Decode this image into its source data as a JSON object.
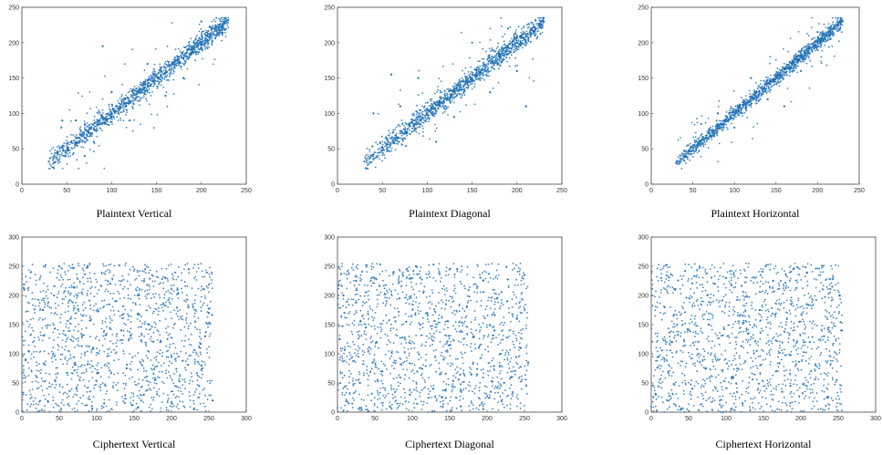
{
  "figure": {
    "colors": {
      "marker": "#1f6fb4",
      "axis": "#444444"
    }
  },
  "chart_data": [
    {
      "type": "scatter",
      "title": "Plaintext Vertical",
      "xlim": [
        0,
        250
      ],
      "ylim": [
        0,
        250
      ],
      "xticks": [
        0,
        50,
        100,
        150,
        200,
        250
      ],
      "yticks": [
        0,
        50,
        100,
        150,
        200,
        250
      ],
      "grid": false,
      "pattern": "strong positive correlation",
      "points": [
        [
          30,
          32
        ],
        [
          40,
          45
        ],
        [
          50,
          48
        ],
        [
          55,
          60
        ],
        [
          60,
          58
        ],
        [
          65,
          70
        ],
        [
          70,
          65
        ],
        [
          75,
          80
        ],
        [
          80,
          78
        ],
        [
          85,
          90
        ],
        [
          90,
          95
        ],
        [
          95,
          92
        ],
        [
          100,
          100
        ],
        [
          105,
          110
        ],
        [
          110,
          108
        ],
        [
          115,
          120
        ],
        [
          120,
          118
        ],
        [
          125,
          128
        ],
        [
          130,
          132
        ],
        [
          135,
          140
        ],
        [
          140,
          138
        ],
        [
          145,
          150
        ],
        [
          150,
          152
        ],
        [
          155,
          160
        ],
        [
          160,
          158
        ],
        [
          165,
          168
        ],
        [
          170,
          172
        ],
        [
          175,
          180
        ],
        [
          180,
          178
        ],
        [
          185,
          190
        ],
        [
          190,
          192
        ],
        [
          195,
          200
        ],
        [
          200,
          198
        ],
        [
          205,
          210
        ],
        [
          210,
          212
        ],
        [
          215,
          220
        ],
        [
          220,
          218
        ],
        [
          225,
          228
        ],
        [
          230,
          232
        ],
        [
          60,
          90
        ],
        [
          80,
          60
        ],
        [
          100,
          130
        ],
        [
          120,
          90
        ],
        [
          140,
          170
        ],
        [
          160,
          125
        ],
        [
          180,
          150
        ],
        [
          200,
          230
        ],
        [
          90,
          195
        ],
        [
          70,
          40
        ],
        [
          45,
          90
        ]
      ]
    },
    {
      "type": "scatter",
      "title": "Plaintext Diagonal",
      "xlim": [
        0,
        250
      ],
      "ylim": [
        0,
        250
      ],
      "xticks": [
        0,
        50,
        100,
        150,
        200,
        250
      ],
      "yticks": [
        0,
        50,
        100,
        150,
        200,
        250
      ],
      "grid": false,
      "pattern": "strong positive correlation",
      "points": [
        [
          30,
          32
        ],
        [
          40,
          42
        ],
        [
          50,
          52
        ],
        [
          55,
          50
        ],
        [
          60,
          65
        ],
        [
          65,
          62
        ],
        [
          70,
          75
        ],
        [
          75,
          72
        ],
        [
          80,
          85
        ],
        [
          85,
          82
        ],
        [
          90,
          95
        ],
        [
          95,
          98
        ],
        [
          100,
          100
        ],
        [
          105,
          108
        ],
        [
          110,
          112
        ],
        [
          115,
          115
        ],
        [
          120,
          125
        ],
        [
          125,
          122
        ],
        [
          130,
          135
        ],
        [
          135,
          132
        ],
        [
          140,
          145
        ],
        [
          145,
          148
        ],
        [
          150,
          150
        ],
        [
          155,
          158
        ],
        [
          160,
          162
        ],
        [
          165,
          165
        ],
        [
          170,
          175
        ],
        [
          175,
          172
        ],
        [
          180,
          185
        ],
        [
          185,
          182
        ],
        [
          190,
          195
        ],
        [
          195,
          198
        ],
        [
          200,
          200
        ],
        [
          205,
          208
        ],
        [
          210,
          212
        ],
        [
          215,
          218
        ],
        [
          220,
          222
        ],
        [
          225,
          225
        ],
        [
          230,
          230
        ],
        [
          60,
          155
        ],
        [
          40,
          100
        ],
        [
          90,
          150
        ],
        [
          130,
          95
        ],
        [
          150,
          200
        ],
        [
          170,
          130
        ],
        [
          200,
          160
        ],
        [
          110,
          60
        ],
        [
          70,
          110
        ],
        [
          190,
          220
        ],
        [
          210,
          110
        ]
      ]
    },
    {
      "type": "scatter",
      "title": "Plaintext Horizontal",
      "xlim": [
        0,
        250
      ],
      "ylim": [
        0,
        250
      ],
      "xticks": [
        0,
        50,
        100,
        150,
        200,
        250
      ],
      "yticks": [
        0,
        50,
        100,
        150,
        200,
        250
      ],
      "grid": false,
      "pattern": "strong positive correlation",
      "points": [
        [
          30,
          30
        ],
        [
          40,
          40
        ],
        [
          45,
          48
        ],
        [
          50,
          52
        ],
        [
          55,
          55
        ],
        [
          60,
          62
        ],
        [
          65,
          65
        ],
        [
          70,
          72
        ],
        [
          75,
          75
        ],
        [
          80,
          82
        ],
        [
          85,
          85
        ],
        [
          90,
          92
        ],
        [
          95,
          95
        ],
        [
          100,
          102
        ],
        [
          105,
          105
        ],
        [
          110,
          112
        ],
        [
          115,
          115
        ],
        [
          120,
          122
        ],
        [
          125,
          125
        ],
        [
          130,
          132
        ],
        [
          135,
          135
        ],
        [
          140,
          142
        ],
        [
          145,
          145
        ],
        [
          150,
          152
        ],
        [
          155,
          155
        ],
        [
          160,
          162
        ],
        [
          165,
          165
        ],
        [
          170,
          172
        ],
        [
          175,
          175
        ],
        [
          180,
          182
        ],
        [
          185,
          185
        ],
        [
          190,
          192
        ],
        [
          195,
          195
        ],
        [
          200,
          202
        ],
        [
          205,
          205
        ],
        [
          210,
          212
        ],
        [
          215,
          215
        ],
        [
          220,
          222
        ],
        [
          225,
          225
        ],
        [
          230,
          230
        ],
        [
          60,
          85
        ],
        [
          100,
          80
        ],
        [
          120,
          150
        ],
        [
          160,
          110
        ],
        [
          80,
          100
        ],
        [
          180,
          160
        ],
        [
          140,
          120
        ],
        [
          200,
          215
        ]
      ]
    },
    {
      "type": "scatter",
      "title": "Ciphertext Vertical",
      "xlim": [
        0,
        300
      ],
      "ylim": [
        0,
        300
      ],
      "xticks": [
        0,
        50,
        100,
        150,
        200,
        250,
        300
      ],
      "yticks": [
        0,
        50,
        100,
        150,
        200,
        250,
        300
      ],
      "grid": false,
      "pattern": "uniform over [0,255] x [0,255]",
      "points": [
        [
          12,
          240
        ],
        [
          35,
          18
        ],
        [
          58,
          132
        ],
        [
          80,
          205
        ],
        [
          102,
          67
        ],
        [
          125,
          190
        ],
        [
          147,
          12
        ],
        [
          170,
          150
        ],
        [
          192,
          230
        ],
        [
          215,
          88
        ],
        [
          237,
          45
        ],
        [
          250,
          170
        ],
        [
          5,
          90
        ],
        [
          28,
          175
        ],
        [
          50,
          250
        ],
        [
          73,
          40
        ],
        [
          95,
          110
        ],
        [
          118,
          220
        ],
        [
          140,
          75
        ],
        [
          163,
          30
        ],
        [
          185,
          120
        ],
        [
          208,
          210
        ],
        [
          230,
          5
        ],
        [
          245,
          130
        ],
        [
          20,
          60
        ],
        [
          42,
          100
        ],
        [
          65,
          160
        ],
        [
          88,
          250
        ],
        [
          110,
          15
        ],
        [
          133,
          140
        ],
        [
          155,
          200
        ],
        [
          178,
          55
        ],
        [
          200,
          95
        ],
        [
          223,
          245
        ],
        [
          240,
          80
        ],
        [
          255,
          20
        ]
      ]
    },
    {
      "type": "scatter",
      "title": "Ciphertext Diagonal",
      "xlim": [
        0,
        300
      ],
      "ylim": [
        0,
        300
      ],
      "xticks": [
        0,
        50,
        100,
        150,
        200,
        250,
        300
      ],
      "yticks": [
        0,
        50,
        100,
        150,
        200,
        250,
        300
      ],
      "grid": false,
      "pattern": "uniform over [0,255] x [0,255]",
      "points": [
        [
          8,
          200
        ],
        [
          30,
          50
        ],
        [
          52,
          120
        ],
        [
          75,
          240
        ],
        [
          97,
          30
        ],
        [
          120,
          170
        ],
        [
          142,
          90
        ],
        [
          165,
          10
        ],
        [
          187,
          215
        ],
        [
          210,
          140
        ],
        [
          232,
          60
        ],
        [
          250,
          235
        ],
        [
          15,
          15
        ],
        [
          38,
          145
        ],
        [
          60,
          70
        ],
        [
          83,
          195
        ],
        [
          105,
          250
        ],
        [
          128,
          40
        ],
        [
          150,
          115
        ],
        [
          173,
          180
        ],
        [
          195,
          5
        ],
        [
          218,
          100
        ],
        [
          240,
          160
        ],
        [
          255,
          85
        ],
        [
          25,
          225
        ],
        [
          47,
          85
        ],
        [
          70,
          10
        ],
        [
          92,
          155
        ],
        [
          115,
          205
        ],
        [
          137,
          65
        ],
        [
          160,
          245
        ],
        [
          182,
          130
        ],
        [
          205,
          35
        ],
        [
          227,
          190
        ],
        [
          245,
          110
        ],
        [
          3,
          125
        ]
      ]
    },
    {
      "type": "scatter",
      "title": "Ciphertext Horizontal",
      "xlim": [
        0,
        300
      ],
      "ylim": [
        0,
        300
      ],
      "xticks": [
        0,
        50,
        100,
        150,
        200,
        250,
        300
      ],
      "yticks": [
        0,
        50,
        100,
        150,
        200,
        250,
        300
      ],
      "grid": false,
      "pattern": "uniform over [0,255] x [0,255]",
      "points": [
        [
          10,
          95
        ],
        [
          32,
          210
        ],
        [
          55,
          40
        ],
        [
          77,
          150
        ],
        [
          100,
          230
        ],
        [
          122,
          15
        ],
        [
          145,
          175
        ],
        [
          167,
          70
        ],
        [
          190,
          245
        ],
        [
          212,
          120
        ],
        [
          235,
          25
        ],
        [
          252,
          200
        ],
        [
          18,
          180
        ],
        [
          40,
          5
        ],
        [
          63,
          100
        ],
        [
          85,
          220
        ],
        [
          108,
          60
        ],
        [
          130,
          135
        ],
        [
          153,
          250
        ],
        [
          175,
          35
        ],
        [
          198,
          155
        ],
        [
          220,
          80
        ],
        [
          242,
          215
        ],
        [
          255,
          140
        ],
        [
          6,
          30
        ],
        [
          28,
          120
        ],
        [
          51,
          195
        ],
        [
          73,
          75
        ],
        [
          96,
          0
        ],
        [
          118,
          165
        ],
        [
          141,
          105
        ],
        [
          163,
          225
        ],
        [
          186,
          45
        ],
        [
          208,
          185
        ],
        [
          231,
          130
        ],
        [
          248,
          55
        ]
      ]
    }
  ]
}
